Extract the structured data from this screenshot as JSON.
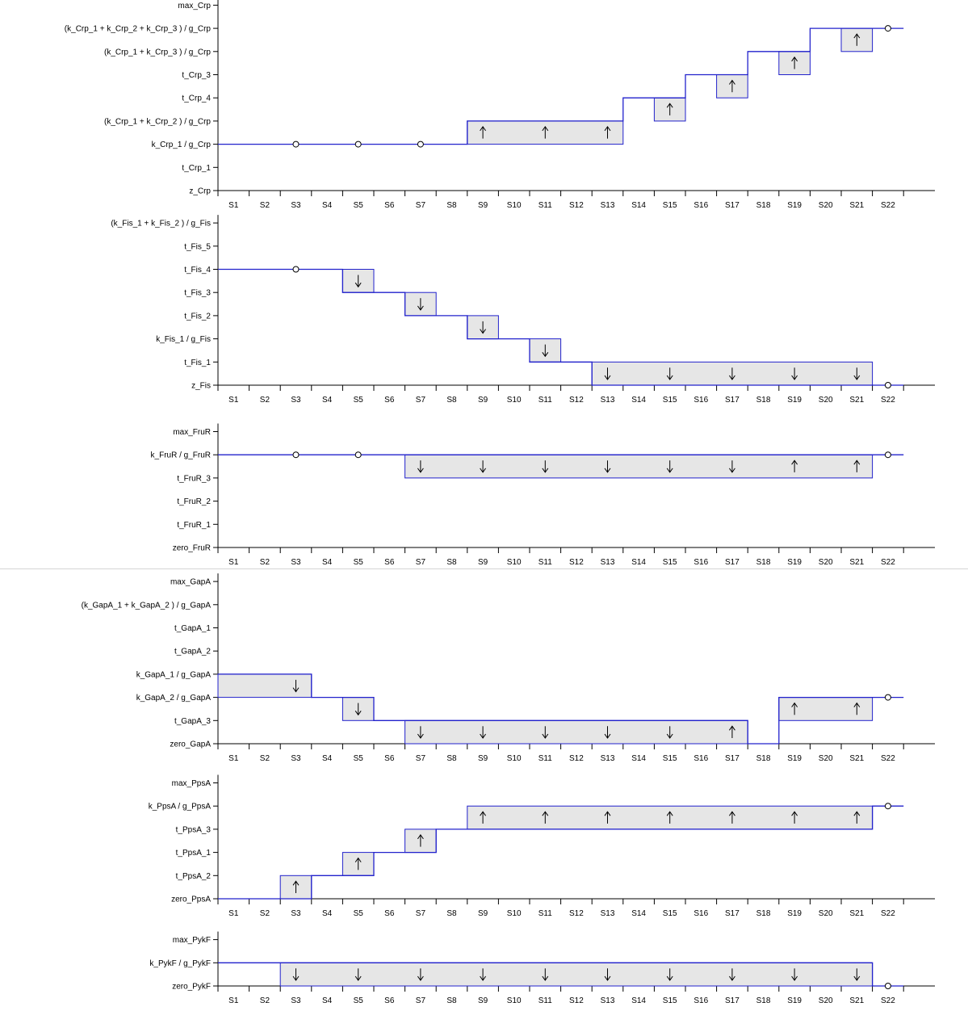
{
  "x_labels": [
    "S1",
    "S2",
    "S3",
    "S4",
    "S5",
    "S6",
    "S7",
    "S8",
    "S9",
    "S10",
    "S11",
    "S12",
    "S13",
    "S14",
    "S15",
    "S16",
    "S17",
    "S18",
    "S19",
    "S20",
    "S21",
    "S22"
  ],
  "colors": {
    "line": "#2222cc",
    "box_fill": "#e6e6e6",
    "axis": "#000000",
    "divider": "#d4d4d4"
  },
  "chart_data": [
    {
      "type": "step",
      "y_levels": [
        "z_Crp",
        "t_Crp_1",
        "k_Crp_1 / g_Crp",
        "(k_Crp_1 + k_Crp_2 ) / g_Crp",
        "t_Crp_4",
        "t_Crp_3",
        "(k_Crp_1 + k_Crp_3 ) / g_Crp",
        "(k_Crp_1 + k_Crp_2 + k_Crp_3 ) / g_Crp",
        "max_Crp"
      ],
      "line": [
        [
          0,
          2
        ],
        [
          8,
          2
        ],
        [
          8,
          3
        ],
        [
          13,
          3
        ],
        [
          13,
          4
        ],
        [
          15,
          4
        ],
        [
          15,
          5
        ],
        [
          17,
          5
        ],
        [
          17,
          6
        ],
        [
          19,
          6
        ],
        [
          19,
          7
        ],
        [
          22,
          7
        ]
      ],
      "boxes": [
        {
          "x0": 8,
          "x1": 13,
          "level": 2,
          "arrows": [
            {
              "state": 9,
              "dir": "up"
            },
            {
              "state": 11,
              "dir": "up"
            },
            {
              "state": 13,
              "dir": "up"
            }
          ]
        },
        {
          "x0": 14,
          "x1": 15,
          "level": 3,
          "arrows": [
            {
              "state": 15,
              "dir": "up"
            }
          ]
        },
        {
          "x0": 16,
          "x1": 17,
          "level": 4,
          "arrows": [
            {
              "state": 17,
              "dir": "up"
            }
          ]
        },
        {
          "x0": 18,
          "x1": 19,
          "level": 5,
          "arrows": [
            {
              "state": 19,
              "dir": "up"
            }
          ]
        },
        {
          "x0": 20,
          "x1": 21,
          "level": 6,
          "arrows": [
            {
              "state": 21,
              "dir": "up"
            }
          ]
        }
      ],
      "steady_states": [
        {
          "state": 3,
          "level": 2
        },
        {
          "state": 5,
          "level": 2
        },
        {
          "state": 7,
          "level": 2
        },
        {
          "state": 22,
          "level": 7
        }
      ]
    },
    {
      "type": "step",
      "y_levels": [
        "z_Fis",
        "t_Fis_1",
        "k_Fis_1 / g_Fis",
        "t_Fis_2",
        "t_Fis_3",
        "t_Fis_4",
        "t_Fis_5",
        "(k_Fis_1 + k_Fis_2 ) / g_Fis"
      ],
      "line": [
        [
          0,
          5
        ],
        [
          4,
          5
        ],
        [
          4,
          4
        ],
        [
          6,
          4
        ],
        [
          6,
          3
        ],
        [
          8,
          3
        ],
        [
          8,
          2
        ],
        [
          10,
          2
        ],
        [
          10,
          1
        ],
        [
          12,
          1
        ],
        [
          12,
          0
        ],
        [
          22,
          0
        ]
      ],
      "boxes": [
        {
          "x0": 4,
          "x1": 5,
          "level": 4,
          "arrows": [
            {
              "state": 5,
              "dir": "down"
            }
          ]
        },
        {
          "x0": 6,
          "x1": 7,
          "level": 3,
          "arrows": [
            {
              "state": 7,
              "dir": "down"
            }
          ]
        },
        {
          "x0": 8,
          "x1": 9,
          "level": 2,
          "arrows": [
            {
              "state": 9,
              "dir": "down"
            }
          ]
        },
        {
          "x0": 10,
          "x1": 11,
          "level": 1,
          "arrows": [
            {
              "state": 11,
              "dir": "down"
            }
          ]
        },
        {
          "x0": 12,
          "x1": 21,
          "level": 0,
          "arrows": [
            {
              "state": 13,
              "dir": "down"
            },
            {
              "state": 15,
              "dir": "down"
            },
            {
              "state": 17,
              "dir": "down"
            },
            {
              "state": 19,
              "dir": "down"
            },
            {
              "state": 21,
              "dir": "down"
            }
          ]
        }
      ],
      "steady_states": [
        {
          "state": 3,
          "level": 5
        },
        {
          "state": 22,
          "level": 0
        }
      ]
    },
    {
      "type": "step",
      "y_levels": [
        "zero_FruR",
        "t_FruR_1",
        "t_FruR_2",
        "t_FruR_3",
        "k_FruR / g_FruR",
        "max_FruR"
      ],
      "line": [
        [
          0,
          4
        ],
        [
          22,
          4
        ]
      ],
      "boxes": [
        {
          "x0": 6,
          "x1": 21,
          "level": 3,
          "arrows": [
            {
              "state": 7,
              "dir": "down"
            },
            {
              "state": 9,
              "dir": "down"
            },
            {
              "state": 11,
              "dir": "down"
            },
            {
              "state": 13,
              "dir": "down"
            },
            {
              "state": 15,
              "dir": "down"
            },
            {
              "state": 17,
              "dir": "down"
            },
            {
              "state": 19,
              "dir": "up"
            },
            {
              "state": 21,
              "dir": "up"
            }
          ]
        }
      ],
      "steady_states": [
        {
          "state": 3,
          "level": 4
        },
        {
          "state": 5,
          "level": 4
        },
        {
          "state": 22,
          "level": 4
        }
      ]
    },
    {
      "type": "step",
      "y_levels": [
        "zero_GapA",
        "t_GapA_3",
        "k_GapA_2 / g_GapA",
        "k_GapA_1 / g_GapA",
        "t_GapA_2",
        "t_GapA_1",
        "(k_GapA_1 + k_GapA_2 ) / g_GapA",
        "max_GapA"
      ],
      "line": [
        [
          0,
          3
        ],
        [
          3,
          3
        ],
        [
          3,
          2
        ],
        [
          4,
          2
        ],
        [
          5,
          2
        ],
        [
          5,
          1
        ],
        [
          6,
          1
        ],
        [
          17,
          1
        ],
        [
          17,
          0
        ],
        [
          18,
          0
        ],
        [
          18,
          2
        ],
        [
          22,
          2
        ]
      ],
      "boxes": [
        {
          "x0": 0,
          "x1": 3,
          "level": 2,
          "arrows": [
            {
              "state": 3,
              "dir": "down"
            }
          ]
        },
        {
          "x0": 4,
          "x1": 5,
          "level": 1,
          "arrows": [
            {
              "state": 5,
              "dir": "down"
            }
          ]
        },
        {
          "x0": 6,
          "x1": 17,
          "level": 0,
          "arrows": [
            {
              "state": 7,
              "dir": "down"
            },
            {
              "state": 9,
              "dir": "down"
            },
            {
              "state": 11,
              "dir": "down"
            },
            {
              "state": 13,
              "dir": "down"
            },
            {
              "state": 15,
              "dir": "down"
            },
            {
              "state": 17,
              "dir": "up"
            }
          ]
        },
        {
          "x0": 18,
          "x1": 21,
          "level": 1,
          "arrows": [
            {
              "state": 19,
              "dir": "up"
            },
            {
              "state": 21,
              "dir": "up"
            }
          ]
        }
      ],
      "steady_states": [
        {
          "state": 22,
          "level": 2
        }
      ]
    },
    {
      "type": "step",
      "y_levels": [
        "zero_PpsA",
        "t_PpsA_2",
        "t_PpsA_1",
        "t_PpsA_3",
        "k_PpsA / g_PpsA",
        "max_PpsA"
      ],
      "line": [
        [
          0,
          0
        ],
        [
          2,
          0
        ],
        [
          3,
          0
        ],
        [
          3,
          1
        ],
        [
          5,
          1
        ],
        [
          5,
          2
        ],
        [
          7,
          2
        ],
        [
          7,
          3
        ],
        [
          21,
          3
        ],
        [
          21,
          4
        ],
        [
          22,
          4
        ]
      ],
      "boxes": [
        {
          "x0": 2,
          "x1": 3,
          "level": 0,
          "arrows": [
            {
              "state": 3,
              "dir": "up"
            }
          ]
        },
        {
          "x0": 4,
          "x1": 5,
          "level": 1,
          "arrows": [
            {
              "state": 5,
              "dir": "up"
            }
          ]
        },
        {
          "x0": 6,
          "x1": 7,
          "level": 2,
          "arrows": [
            {
              "state": 7,
              "dir": "up"
            }
          ]
        },
        {
          "x0": 8,
          "x1": 21,
          "level": 3,
          "arrows": [
            {
              "state": 9,
              "dir": "up"
            },
            {
              "state": 11,
              "dir": "up"
            },
            {
              "state": 13,
              "dir": "up"
            },
            {
              "state": 15,
              "dir": "up"
            },
            {
              "state": 17,
              "dir": "up"
            },
            {
              "state": 19,
              "dir": "up"
            },
            {
              "state": 21,
              "dir": "up"
            }
          ]
        }
      ],
      "steady_states": [
        {
          "state": 22,
          "level": 4
        }
      ]
    },
    {
      "type": "step",
      "y_levels": [
        "zero_PykF",
        "k_PykF / g_PykF",
        "max_PykF"
      ],
      "line": [
        [
          0,
          1
        ],
        [
          2,
          1
        ],
        [
          21,
          1
        ],
        [
          21,
          0
        ],
        [
          22,
          0
        ]
      ],
      "boxes": [
        {
          "x0": 2,
          "x1": 21,
          "level": 0,
          "arrows": [
            {
              "state": 3,
              "dir": "down"
            },
            {
              "state": 5,
              "dir": "down"
            },
            {
              "state": 7,
              "dir": "down"
            },
            {
              "state": 9,
              "dir": "down"
            },
            {
              "state": 11,
              "dir": "down"
            },
            {
              "state": 13,
              "dir": "down"
            },
            {
              "state": 15,
              "dir": "down"
            },
            {
              "state": 17,
              "dir": "down"
            },
            {
              "state": 19,
              "dir": "down"
            },
            {
              "state": 21,
              "dir": "down"
            }
          ]
        }
      ],
      "steady_states": [
        {
          "state": 22,
          "level": 0
        }
      ]
    }
  ]
}
